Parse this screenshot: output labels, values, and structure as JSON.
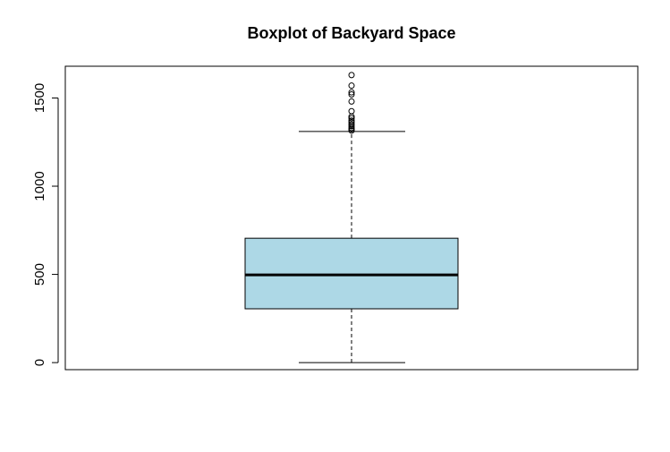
{
  "chart_data": {
    "type": "boxplot",
    "title": "Boxplot of Backyard Space",
    "xlabel": "",
    "ylabel": "",
    "ylim": [
      -40,
      1680
    ],
    "y_ticks": [
      0,
      500,
      1000,
      1500
    ],
    "y_tick_labels": [
      "0",
      "500",
      "1000",
      "1500"
    ],
    "box": {
      "min": 0,
      "q1": 305,
      "median": 497,
      "q3": 705,
      "max": 1310
    },
    "outliers": [
      1315,
      1322,
      1330,
      1340,
      1350,
      1362,
      1372,
      1385,
      1395,
      1425,
      1480,
      1520,
      1532,
      1570,
      1630
    ],
    "colors": {
      "box_fill": "#add8e6",
      "stroke": "#000000",
      "background": "#ffffff"
    }
  }
}
